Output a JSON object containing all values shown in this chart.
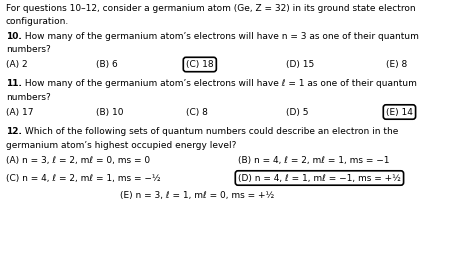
{
  "bg_color": "#ffffff",
  "text_color": "#000000",
  "fig_width": 4.74,
  "fig_height": 2.57,
  "dpi": 100,
  "intro_line1": "For questions 10–12, consider a germanium atom (Ge, Z = 32) in its ground state electron",
  "intro_line2": "configuration.",
  "q10_bold": "10.",
  "q10_rest": " How many of the germanium atom’s electrons will have n = 3 as one of their quantum",
  "q10_line2": "numbers?",
  "q10_options": [
    "(A) 2",
    "(B) 6",
    "(C) 18",
    "(D) 15",
    "(E) 8"
  ],
  "q10_circle": 2,
  "q11_bold": "11.",
  "q11_rest": " How many of the germanium atom’s electrons will have ℓ = 1 as one of their quantum",
  "q11_line2": "numbers?",
  "q11_options": [
    "(A) 17",
    "(B) 10",
    "(C) 8",
    "(D) 5",
    "(E) 14"
  ],
  "q11_circle": 4,
  "q12_bold": "12.",
  "q12_rest": " Which of the following sets of quantum numbers could describe an electron in the",
  "q12_line2": "germanium atom’s highest occupied energy level?",
  "q12_options": [
    "(A) n = 3, ℓ = 2, mℓ = 0, ms = 0",
    "(B) n = 4, ℓ = 2, mℓ = 1, ms = −1",
    "(C) n = 4, ℓ = 2, mℓ = 1, ms = −½",
    "(D) n = 4, ℓ = 1, mℓ = −1, ms = +½",
    "(E) n = 3, ℓ = 1, mℓ = 0, ms = +½"
  ],
  "q12_circle": 3,
  "fs": 6.5
}
